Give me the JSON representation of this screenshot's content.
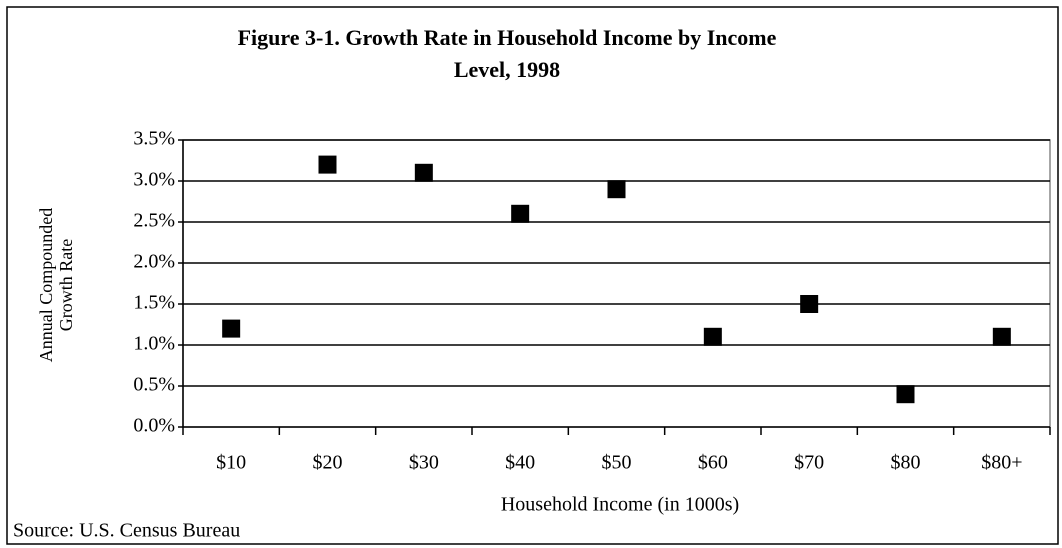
{
  "chart_data": {
    "type": "scatter",
    "title": [
      "Figure 3-1.  Growth Rate in Household Income by Income",
      "Level, 1998"
    ],
    "x_label": "Household Income (in 1000s)",
    "y_label": [
      "Annual Compounded",
      "Growth Rate"
    ],
    "source": "Source:  U.S. Census Bureau",
    "categories": [
      "$10",
      "$20",
      "$30",
      "$40",
      "$50",
      "$60",
      "$70",
      "$80",
      "$80+"
    ],
    "values": [
      1.2,
      3.2,
      3.1,
      2.6,
      2.9,
      1.1,
      1.5,
      0.4,
      1.1
    ],
    "color": "#000000",
    "ylim": [
      0,
      3.5
    ],
    "yticks": [
      {
        "value": 0,
        "label": "0.0%"
      },
      {
        "value": 0.5,
        "label": "0.5%"
      },
      {
        "value": 1,
        "label": "1.0%"
      },
      {
        "value": 1.5,
        "label": "1.5%"
      },
      {
        "value": 2,
        "label": "2.0%"
      },
      {
        "value": 2.5,
        "label": "2.5%"
      },
      {
        "value": 3,
        "label": "3.0%"
      },
      {
        "value": 3.5,
        "label": "3.5%"
      }
    ],
    "grid": true
  }
}
